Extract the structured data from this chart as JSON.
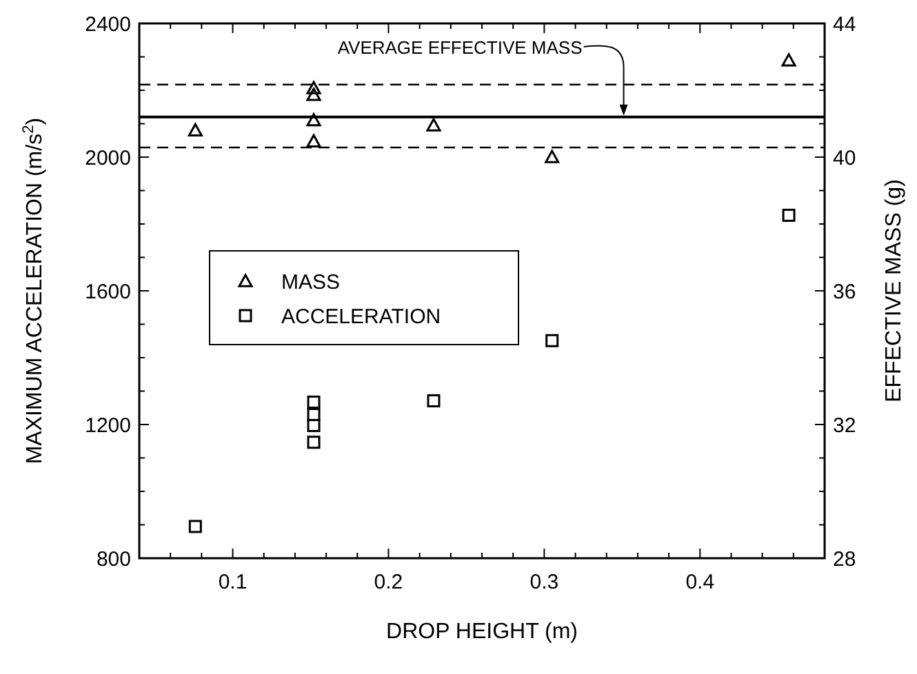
{
  "chart_data": {
    "type": "scatter",
    "xlabel": "DROP HEIGHT (m)",
    "ylabel": "MAXIMUM ACCELERATION (m/s$^{2}$)",
    "y2label": "EFFECTIVE MASS (g)",
    "xlim": [
      0.04,
      0.48
    ],
    "xticks": [
      {
        "value": 0.04,
        "label": null
      },
      {
        "value": 0.06,
        "label": null
      },
      {
        "value": 0.08,
        "label": null
      },
      0.1,
      {
        "value": 0.12,
        "label": null
      },
      {
        "value": 0.14,
        "label": null
      },
      {
        "value": 0.16,
        "label": null
      },
      {
        "value": 0.18,
        "label": null
      },
      0.2,
      {
        "value": 0.22,
        "label": null
      },
      {
        "value": 0.24,
        "label": null
      },
      {
        "value": 0.26,
        "label": null
      },
      {
        "value": 0.28,
        "label": null
      },
      0.3,
      {
        "value": 0.32,
        "label": null
      },
      {
        "value": 0.34,
        "label": null
      },
      {
        "value": 0.36,
        "label": null
      },
      {
        "value": 0.38,
        "label": null
      },
      0.4,
      {
        "value": 0.42,
        "label": null
      },
      {
        "value": 0.44,
        "label": null
      },
      {
        "value": 0.46,
        "label": null
      },
      {
        "value": 0.48,
        "label": null
      }
    ],
    "ylim": [
      800,
      2400
    ],
    "yticks": [
      800,
      {
        "value": 900,
        "label": null
      },
      {
        "value": 1000,
        "label": null
      },
      {
        "value": 1100,
        "label": null
      },
      1200,
      {
        "value": 1300,
        "label": null
      },
      {
        "value": 1400,
        "label": null
      },
      {
        "value": 1500,
        "label": null
      },
      1600,
      {
        "value": 1700,
        "label": null
      },
      {
        "value": 1800,
        "label": null
      },
      {
        "value": 1900,
        "label": null
      },
      2000,
      {
        "value": 2100,
        "label": null
      },
      {
        "value": 2200,
        "label": null
      },
      {
        "value": 2300,
        "label": null
      },
      2400
    ],
    "y2lim": [
      28,
      44
    ],
    "y2ticks": [
      28,
      {
        "value": 29,
        "label": null
      },
      {
        "value": 30,
        "label": null
      },
      {
        "value": 31,
        "label": null
      },
      32,
      {
        "value": 33,
        "label": null
      },
      {
        "value": 34,
        "label": null
      },
      {
        "value": 35,
        "label": null
      },
      36,
      {
        "value": 37,
        "label": null
      },
      {
        "value": 38,
        "label": null
      },
      {
        "value": 39,
        "label": null
      },
      40,
      {
        "value": 41,
        "label": null
      },
      {
        "value": 42,
        "label": null
      },
      {
        "value": 43,
        "label": null
      },
      44
    ],
    "legend": "left",
    "grid": false,
    "series": [
      {
        "name": "MASS",
        "color": "#000000",
        "marker": "triangle",
        "axis": "y2",
        "x": [
          0.076,
          0.152,
          0.152,
          0.152,
          0.152,
          0.229,
          0.305,
          0.457
        ],
        "values": [
          40.8,
          42.06,
          41.86,
          41.1,
          40.47,
          40.95,
          40.0,
          42.89
        ]
      },
      {
        "name": "ACCELERATION",
        "color": "#000000",
        "marker": "square",
        "x": [
          0.076,
          0.152,
          0.152,
          0.152,
          0.152,
          0.229,
          0.305,
          0.457
        ],
        "values": [
          895,
          1267,
          1230,
          1197,
          1147,
          1271,
          1451,
          1826
        ]
      }
    ],
    "ref_lines": [
      {
        "axis": "y2",
        "value": 41.2,
        "line_style": "solid",
        "color": "#000000"
      },
      {
        "axis": "y2",
        "value": 42.17,
        "line_style": "dashed",
        "color": "#000000"
      },
      {
        "axis": "y2",
        "value": 40.29,
        "line_style": "dashed",
        "color": "#000000"
      }
    ],
    "annotations": [
      {
        "text": "AVERAGE EFFECTIVE MASS",
        "x": 0.351,
        "y": 2120
      }
    ]
  }
}
